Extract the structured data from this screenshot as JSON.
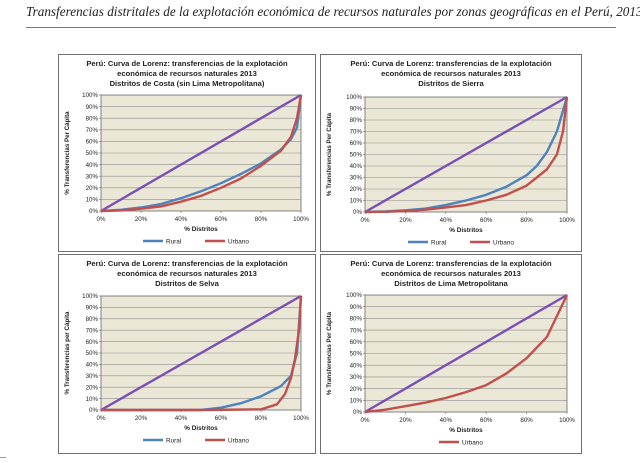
{
  "page": {
    "title": "Transferencias distritales de la explotación económica de recursos naturales por zonas geográficas en el Perú, 2013"
  },
  "colors": {
    "equality_line": "#7a4fb5",
    "rural": "#4f81bd",
    "urbano": "#c0504d",
    "plot_background": "#ebe7d6",
    "grid": "#8c8c8c"
  },
  "chart_data": [
    {
      "type": "line",
      "title_lines": [
        "Perú: Curva de Lorenz: transferencias de la explotación",
        "económica de recursos naturales  2013",
        "Distritos de Costa (sin Lima Metropolitana)"
      ],
      "xlabel": "% Distritos",
      "ylabel": "% Transferencias  Per Cápita",
      "xlim": [
        0,
        100
      ],
      "ylim": [
        0,
        100
      ],
      "xticks": [
        "0%",
        "20%",
        "40%",
        "60%",
        "80%",
        "100%"
      ],
      "yticks": [
        "0%",
        "10%",
        "20%",
        "30%",
        "40%",
        "50%",
        "60%",
        "70%",
        "80%",
        "90%",
        "100%"
      ],
      "grid": true,
      "legend": "bottom",
      "legend_entries": [
        "Rural",
        "Urbano"
      ],
      "equality_line": [
        [
          0,
          0
        ],
        [
          100,
          100
        ]
      ],
      "series": [
        {
          "name": "Rural",
          "color_key": "rural",
          "points": [
            [
              0,
              0
            ],
            [
              10,
              1
            ],
            [
              20,
              3
            ],
            [
              30,
              6
            ],
            [
              40,
              11
            ],
            [
              50,
              17
            ],
            [
              60,
              24
            ],
            [
              70,
              32
            ],
            [
              80,
              41
            ],
            [
              90,
              53
            ],
            [
              95,
              62
            ],
            [
              98,
              72
            ],
            [
              100,
              100
            ]
          ]
        },
        {
          "name": "Urbano",
          "color_key": "urbano",
          "points": [
            [
              0,
              0
            ],
            [
              10,
              0.5
            ],
            [
              20,
              2
            ],
            [
              30,
              4
            ],
            [
              40,
              8
            ],
            [
              50,
              13
            ],
            [
              60,
              20
            ],
            [
              70,
              28
            ],
            [
              80,
              39
            ],
            [
              90,
              52
            ],
            [
              95,
              64
            ],
            [
              98,
              80
            ],
            [
              100,
              100
            ]
          ]
        }
      ]
    },
    {
      "type": "line",
      "title_lines": [
        "Perú: Curva de Lorenz: transferencias de la explotación",
        "económica de recursos naturales   2013",
        "Distritos de Sierra"
      ],
      "xlabel": "% Distritos",
      "ylabel": "% Transferencias Per Cápita",
      "xlim": [
        0,
        100
      ],
      "ylim": [
        0,
        100
      ],
      "xticks": [
        "0%",
        "20%",
        "40%",
        "60%",
        "80%",
        "100%"
      ],
      "yticks": [
        "0%",
        "10%",
        "20%",
        "30%",
        "40%",
        "50%",
        "60%",
        "70%",
        "80%",
        "90%",
        "100%"
      ],
      "grid": true,
      "legend": "bottom",
      "legend_entries": [
        "Rural",
        "Urbano"
      ],
      "equality_line": [
        [
          0,
          0
        ],
        [
          100,
          100
        ]
      ],
      "series": [
        {
          "name": "Rural",
          "color_key": "rural",
          "points": [
            [
              0,
              0
            ],
            [
              10,
              0.5
            ],
            [
              20,
              1.5
            ],
            [
              30,
              3
            ],
            [
              40,
              6
            ],
            [
              50,
              10
            ],
            [
              60,
              15
            ],
            [
              70,
              22
            ],
            [
              80,
              32
            ],
            [
              85,
              40
            ],
            [
              90,
              52
            ],
            [
              95,
              70
            ],
            [
              100,
              100
            ]
          ]
        },
        {
          "name": "Urbano",
          "color_key": "urbano",
          "points": [
            [
              0,
              0
            ],
            [
              10,
              0.2
            ],
            [
              20,
              0.8
            ],
            [
              30,
              2
            ],
            [
              40,
              4
            ],
            [
              50,
              6
            ],
            [
              60,
              10
            ],
            [
              70,
              15
            ],
            [
              80,
              23
            ],
            [
              90,
              37
            ],
            [
              95,
              50
            ],
            [
              98,
              70
            ],
            [
              100,
              100
            ]
          ]
        }
      ]
    },
    {
      "type": "line",
      "title_lines": [
        "Perú: Curva de Lorenz: transferencias de la explotación",
        "económica de recursos naturales  2013",
        "Distritos de Selva"
      ],
      "xlabel": "% Distritos",
      "ylabel": "% Transferencias  per Cápita",
      "xlim": [
        0,
        100
      ],
      "ylim": [
        0,
        100
      ],
      "xticks": [
        "0%",
        "20%",
        "40%",
        "60%",
        "80%",
        "100%"
      ],
      "yticks": [
        "0%",
        "10%",
        "20%",
        "30%",
        "40%",
        "50%",
        "60%",
        "70%",
        "80%",
        "90%",
        "100%"
      ],
      "grid": true,
      "legend": "bottom",
      "legend_entries": [
        "Rural",
        "Urbano"
      ],
      "equality_line": [
        [
          0,
          0
        ],
        [
          100,
          100
        ]
      ],
      "series": [
        {
          "name": "Rural",
          "color_key": "rural",
          "points": [
            [
              0,
              0
            ],
            [
              40,
              0
            ],
            [
              50,
              0
            ],
            [
              60,
              2
            ],
            [
              70,
              6
            ],
            [
              80,
              12
            ],
            [
              90,
              21
            ],
            [
              95,
              30
            ],
            [
              98,
              50
            ],
            [
              100,
              100
            ]
          ]
        },
        {
          "name": "Urbano",
          "color_key": "urbano",
          "points": [
            [
              0,
              0
            ],
            [
              50,
              0
            ],
            [
              80,
              0.5
            ],
            [
              88,
              5
            ],
            [
              92,
              14
            ],
            [
              95,
              28
            ],
            [
              97,
              45
            ],
            [
              99,
              70
            ],
            [
              100,
              100
            ]
          ]
        }
      ]
    },
    {
      "type": "line",
      "title_lines": [
        "Perú: Curva de Lorenz: transferencias de la explotación",
        "económica de recursos naturales 2013",
        "Distritos de Lima Metropolitana"
      ],
      "xlabel": "% Distritos",
      "ylabel": "% Transferencias Per Cápita",
      "xlim": [
        0,
        100
      ],
      "ylim": [
        0,
        100
      ],
      "xticks": [
        "0%",
        "20%",
        "40%",
        "60%",
        "80%",
        "100%"
      ],
      "yticks": [
        "0%",
        "10%",
        "20%",
        "30%",
        "40%",
        "50%",
        "60%",
        "70%",
        "80%",
        "90%",
        "100%"
      ],
      "grid": true,
      "legend": "bottom",
      "legend_entries": [
        "Urbano"
      ],
      "equality_line": [
        [
          0,
          0
        ],
        [
          100,
          100
        ]
      ],
      "series": [
        {
          "name": "Urbano",
          "color_key": "urbano",
          "points": [
            [
              0,
              0
            ],
            [
              10,
              2
            ],
            [
              20,
              5
            ],
            [
              30,
              8
            ],
            [
              40,
              12
            ],
            [
              50,
              17
            ],
            [
              60,
              23
            ],
            [
              70,
              33
            ],
            [
              80,
              46
            ],
            [
              90,
              64
            ],
            [
              100,
              100
            ]
          ]
        }
      ]
    }
  ]
}
